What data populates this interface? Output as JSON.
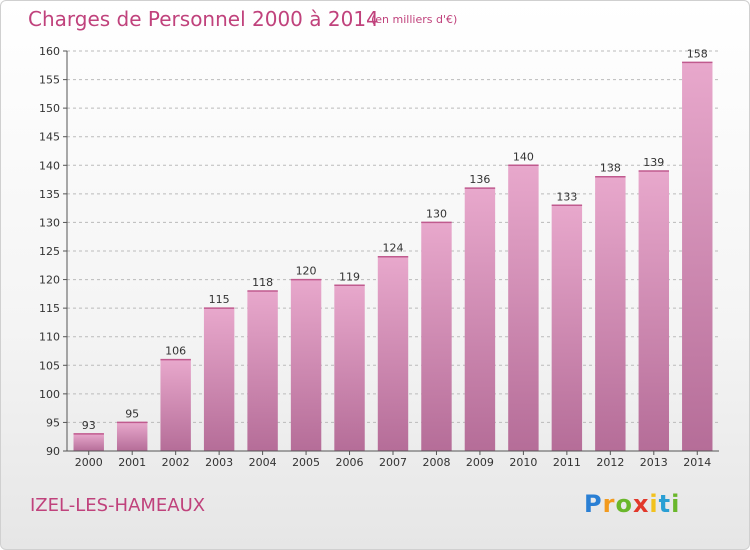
{
  "header": {
    "title": "Charges de Personnel 2000 à 2014",
    "subtitle": "(en milliers d'€)"
  },
  "footer": {
    "commune": "IZEL-LES-HAMEAUX",
    "logo_text": "Proxiti"
  },
  "colors": {
    "title": "#c0427c",
    "bar_top": "#e8a8cc",
    "bar_bottom": "#b56d98",
    "grid": "#bbbbbb"
  },
  "chart_data": {
    "type": "bar",
    "categories": [
      "2000",
      "2001",
      "2002",
      "2003",
      "2004",
      "2005",
      "2006",
      "2007",
      "2008",
      "2009",
      "2010",
      "2011",
      "2012",
      "2013",
      "2014"
    ],
    "values": [
      93,
      95,
      106,
      115,
      118,
      120,
      119,
      124,
      130,
      136,
      140,
      133,
      138,
      139,
      158
    ],
    "ylim": [
      90,
      160
    ],
    "yticks": [
      90,
      95,
      100,
      105,
      110,
      115,
      120,
      125,
      130,
      135,
      140,
      145,
      150,
      155,
      160
    ],
    "grid": true,
    "grid_style": "dashed horizontal",
    "data_labels": true
  }
}
